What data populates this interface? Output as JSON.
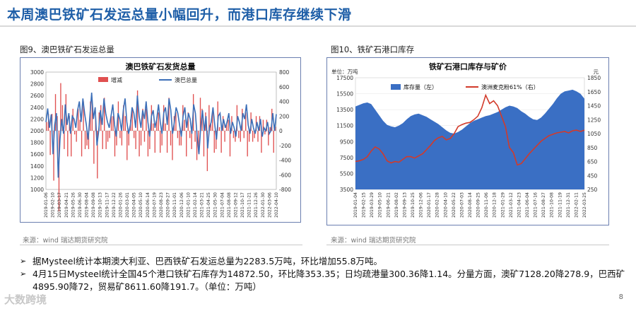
{
  "page": {
    "title": "本周澳巴铁矿石发运总量小幅回升，而港口库存继续下滑",
    "page_number": "8",
    "watermark": "大数跨境"
  },
  "figures": [
    {
      "label": "图9、澳巴铁矿石发运总量",
      "source": "来源：wind   瑞达期货研究院"
    },
    {
      "label": "图10、铁矿石港口库存",
      "source": "来源：wind   瑞达期货研究院"
    }
  ],
  "bullets": [
    "据Mysteel统计本期澳大利亚、巴西铁矿石发运总量为2283.5万吨，环比增加55.8万吨。",
    "4月15日Mysteel统计全国45个港口铁矿石库存为14872.50，环比降353.35；日均疏港量300.36降1.14。分量方面，澳矿7128.20降278.9，巴西矿4895.90降72，贸易矿8611.60降191.7。（单位：万吨）"
  ],
  "chart_data": [
    {
      "type": "bar+line",
      "title": "澳巴铁矿石发货总量",
      "legend": [
        "增减",
        "澳巴总量"
      ],
      "legend_placement": "top",
      "colors": {
        "bars": "#e05050",
        "line": "#3c6fb8"
      },
      "left_axis": {
        "range": [
          1000,
          3000
        ],
        "ticks": [
          1000,
          1200,
          1400,
          1600,
          1800,
          2000,
          2200,
          2400,
          2600,
          2800,
          3000
        ]
      },
      "right_axis": {
        "range": [
          -800,
          800
        ],
        "ticks": [
          -800,
          -600,
          -400,
          -200,
          0,
          200,
          400,
          600,
          800
        ]
      },
      "x_tick_labels": [
        "2019-01-06",
        "2019-02-10",
        "2019-03-17",
        "2019-04-21",
        "2019-05-26",
        "2019-06-30",
        "2019-08-04",
        "2019-09-08",
        "2019-10-13",
        "2019-11-17",
        "2019-12-22",
        "2020-01-26",
        "2020-03-01",
        "2020-04-05",
        "2020-05-10",
        "2020-06-14",
        "2020-07-19",
        "2020-08-23",
        "2020-09-27",
        "2020-11-01",
        "2020-12-06",
        "2021-01-10",
        "2021-02-14",
        "2021-03-21",
        "2021-04-25",
        "2021-05-30",
        "2021-07-04",
        "2021-08-08",
        "2021-09-12",
        "2021-10-17",
        "2021-11-21",
        "2021-12-26",
        "2022-01-30",
        "2022-03-06",
        "2022-04-10"
      ],
      "series_total": [
        2150,
        2380,
        2050,
        2280,
        1600,
        2100,
        2300,
        1200,
        1850,
        2200,
        1950,
        2450,
        2100,
        2300,
        1950,
        2250,
        2200,
        2050,
        2350,
        2500,
        2150,
        2550,
        2300,
        2100,
        1850,
        2250,
        2650,
        2200,
        2400,
        1750,
        2000,
        2350,
        2100,
        2550,
        2300,
        2150,
        2050,
        2250,
        2450,
        2100,
        1900,
        2300,
        2200,
        2000,
        2350,
        2550,
        2150,
        1950,
        2100,
        2400,
        2300,
        2050,
        2600,
        2250,
        2050,
        2350,
        2200,
        2500,
        2150,
        1900,
        2250,
        2350,
        2050,
        2200,
        2450,
        2150,
        1950,
        2300,
        2400,
        2100,
        2550,
        2350,
        1950,
        2150,
        2400,
        2300,
        2100,
        1900,
        2250,
        2400,
        2050,
        2300,
        2200,
        1950,
        2450,
        2300,
        1900,
        1600,
        2050,
        2350,
        2000,
        2250,
        1700,
        2050,
        2150,
        2400,
        2100,
        1850,
        2250,
        2300,
        2000,
        2200,
        2050,
        2150,
        2300,
        1950,
        2150,
        2050,
        1900,
        2250,
        2150,
        2000,
        2300,
        2200,
        2450,
        2100,
        1950,
        2200,
        2050,
        1950,
        2150,
        2000,
        2200,
        1900,
        2050,
        2000,
        2150,
        1950,
        2000,
        2300,
        2000,
        2283
      ],
      "series_change": [
        120,
        230,
        -330,
        230,
        -680,
        500,
        200,
        -1100,
        650,
        350,
        -250,
        500,
        -350,
        200,
        -350,
        300,
        -50,
        -150,
        300,
        150,
        -350,
        400,
        -250,
        -200,
        -250,
        400,
        400,
        -450,
        200,
        -650,
        250,
        350,
        -250,
        450,
        -250,
        -150,
        -100,
        200,
        200,
        -350,
        -200,
        400,
        -100,
        -200,
        350,
        200,
        -400,
        -200,
        150,
        300,
        -100,
        -250,
        550,
        -350,
        -200,
        300,
        -150,
        300,
        -350,
        -250,
        350,
        100,
        -300,
        150,
        250,
        -300,
        -200,
        350,
        100,
        -300,
        450,
        -200,
        -400,
        200,
        250,
        -100,
        -200,
        -200,
        350,
        150,
        -350,
        250,
        -100,
        -250,
        500,
        -150,
        -400,
        -300,
        450,
        300,
        -350,
        250,
        -550,
        350,
        100,
        250,
        -300,
        -250,
        400,
        50,
        -300,
        200,
        -150,
        100,
        150,
        -350,
        200,
        -100,
        -150,
        350,
        -100,
        -150,
        300,
        -100,
        250,
        -350,
        -150,
        250,
        -150,
        -100,
        200,
        -150,
        200,
        -300,
        150,
        -50,
        150,
        -200,
        50,
        300,
        -300,
        56
      ]
    },
    {
      "type": "area+line",
      "title": "铁矿石港口库存与矿价",
      "legend": [
        "库存量（左）",
        "澳洲麦克粉61%（右）"
      ],
      "legend_placement": "top",
      "colors": {
        "area": "#3a6fc4",
        "line": "#d23a2a"
      },
      "left_unit": "单位：万吨",
      "right_unit": "元",
      "left_axis": {
        "range": [
          3500,
          17500
        ],
        "ticks": [
          3500,
          5500,
          7500,
          9500,
          11500,
          13500,
          15500,
          17500
        ]
      },
      "right_axis": {
        "range": [
          250,
          1850
        ],
        "ticks": [
          250,
          450,
          650,
          850,
          1050,
          1250,
          1450,
          1650,
          1850
        ]
      },
      "x_tick_labels": [
        "2019-01-04",
        "2019-02-15",
        "2019-03-29",
        "2019-05-10",
        "2019-06-21",
        "2019-08-02",
        "2019-09-13",
        "2019-10-25",
        "2019-12-06",
        "2020-01-17",
        "2020-02-28",
        "2020-04-10",
        "2020-05-22",
        "2020-07-03",
        "2020-08-14",
        "2020-09-25",
        "2020-11-06",
        "2020-12-18",
        "2021-01-29",
        "2021-03-12",
        "2021-04-23",
        "2021-06-04",
        "2021-07-16",
        "2021-08-27",
        "2021-10-08",
        "2021-11-19",
        "2021-12-31",
        "2022-02-11",
        "2022-03-25"
      ],
      "series_inventory": [
        13900,
        14100,
        14300,
        14400,
        14200,
        13500,
        12800,
        12100,
        11600,
        11400,
        11300,
        11500,
        11800,
        12300,
        12700,
        12900,
        13000,
        12800,
        12600,
        12300,
        12000,
        11700,
        11300,
        10900,
        10600,
        10500,
        10700,
        11000,
        11400,
        11800,
        12100,
        12300,
        12500,
        12700,
        12800,
        13000,
        13200,
        13500,
        13800,
        14000,
        13900,
        13700,
        13300,
        13000,
        12600,
        12300,
        12200,
        12500,
        13000,
        13600,
        14200,
        14900,
        15500,
        15800,
        15900,
        16000,
        15800,
        15500,
        14873
      ],
      "series_price": [
        650,
        660,
        680,
        720,
        800,
        860,
        830,
        760,
        660,
        630,
        650,
        640,
        680,
        720,
        720,
        700,
        730,
        760,
        820,
        880,
        950,
        990,
        1010,
        960,
        980,
        1050,
        1150,
        1180,
        1200,
        1210,
        1250,
        1300,
        1420,
        1600,
        1480,
        1520,
        1450,
        1300,
        1150,
        850,
        780,
        600,
        620,
        690,
        760,
        820,
        880,
        940,
        980,
        1020,
        1040,
        1060,
        1070,
        1080,
        1060,
        1090,
        1100,
        1080,
        1100
      ]
    }
  ]
}
